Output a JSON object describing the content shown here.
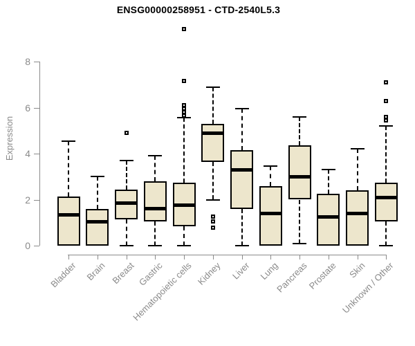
{
  "window": {
    "title": "ENSG00000258951 - CTD-2540L5.3"
  },
  "chart_data": {
    "type": "boxplot",
    "title": "ENSG00000258951 - CTD-2540L5.3",
    "xlabel": "",
    "ylabel": "Expression",
    "ylim": [
      0,
      8
    ],
    "yticks": [
      0,
      2,
      4,
      6,
      8
    ],
    "grid": false,
    "legend": false,
    "categories": [
      "Bladder",
      "Brain",
      "Breast",
      "Gastric",
      "Hematopoietic cells",
      "Kidney",
      "Liver",
      "Lung",
      "Pancreas",
      "Prostate",
      "Skin",
      "Unknown / Other"
    ],
    "series": [
      {
        "name": "Bladder",
        "low": 0,
        "q1": 0,
        "median": 1.35,
        "q3": 2.15,
        "high": 4.55,
        "outliers": []
      },
      {
        "name": "Brain",
        "low": 0,
        "q1": 0,
        "median": 1.05,
        "q3": 1.6,
        "high": 3.0,
        "outliers": []
      },
      {
        "name": "Breast",
        "low": 0,
        "q1": 1.15,
        "median": 1.85,
        "q3": 2.45,
        "high": 3.7,
        "outliers": [
          4.9
        ]
      },
      {
        "name": "Gastric",
        "low": 0,
        "q1": 1.05,
        "median": 1.6,
        "q3": 2.8,
        "high": 3.9,
        "outliers": []
      },
      {
        "name": "Hematopoietic cells",
        "low": 0,
        "q1": 0.85,
        "median": 1.75,
        "q3": 2.75,
        "high": 5.55,
        "outliers": [
          5.65,
          5.8,
          5.95,
          6.1,
          7.15,
          9.4
        ]
      },
      {
        "name": "Kidney",
        "low": 2.0,
        "q1": 3.65,
        "median": 4.9,
        "q3": 5.3,
        "high": 6.9,
        "outliers": [
          1.25,
          1.05,
          0.78
        ]
      },
      {
        "name": "Liver",
        "low": 0,
        "q1": 1.6,
        "median": 3.3,
        "q3": 4.15,
        "high": 5.95,
        "outliers": []
      },
      {
        "name": "Lung",
        "low": 0,
        "q1": 0,
        "median": 1.4,
        "q3": 2.6,
        "high": 3.45,
        "outliers": []
      },
      {
        "name": "Pancreas",
        "low": 0.1,
        "q1": 2.0,
        "median": 3.0,
        "q3": 4.35,
        "high": 5.6,
        "outliers": []
      },
      {
        "name": "Prostate",
        "low": 0,
        "q1": 0,
        "median": 1.25,
        "q3": 2.25,
        "high": 3.3,
        "outliers": []
      },
      {
        "name": "Skin",
        "low": 0,
        "q1": 0,
        "median": 1.4,
        "q3": 2.4,
        "high": 4.2,
        "outliers": []
      },
      {
        "name": "Unknown / Other",
        "low": 0,
        "q1": 1.05,
        "median": 2.1,
        "q3": 2.75,
        "high": 5.2,
        "outliers": [
          5.45,
          5.6,
          6.3,
          7.1
        ]
      }
    ],
    "colors": {
      "box_fill": "#EDE6CC",
      "box_border": "#000000",
      "median": "#000000",
      "whisker": "#000000",
      "axis": "#8A8A8A",
      "tick_label": "#8A8A8A",
      "title": "#000000",
      "background": "#FFFFFF"
    }
  }
}
